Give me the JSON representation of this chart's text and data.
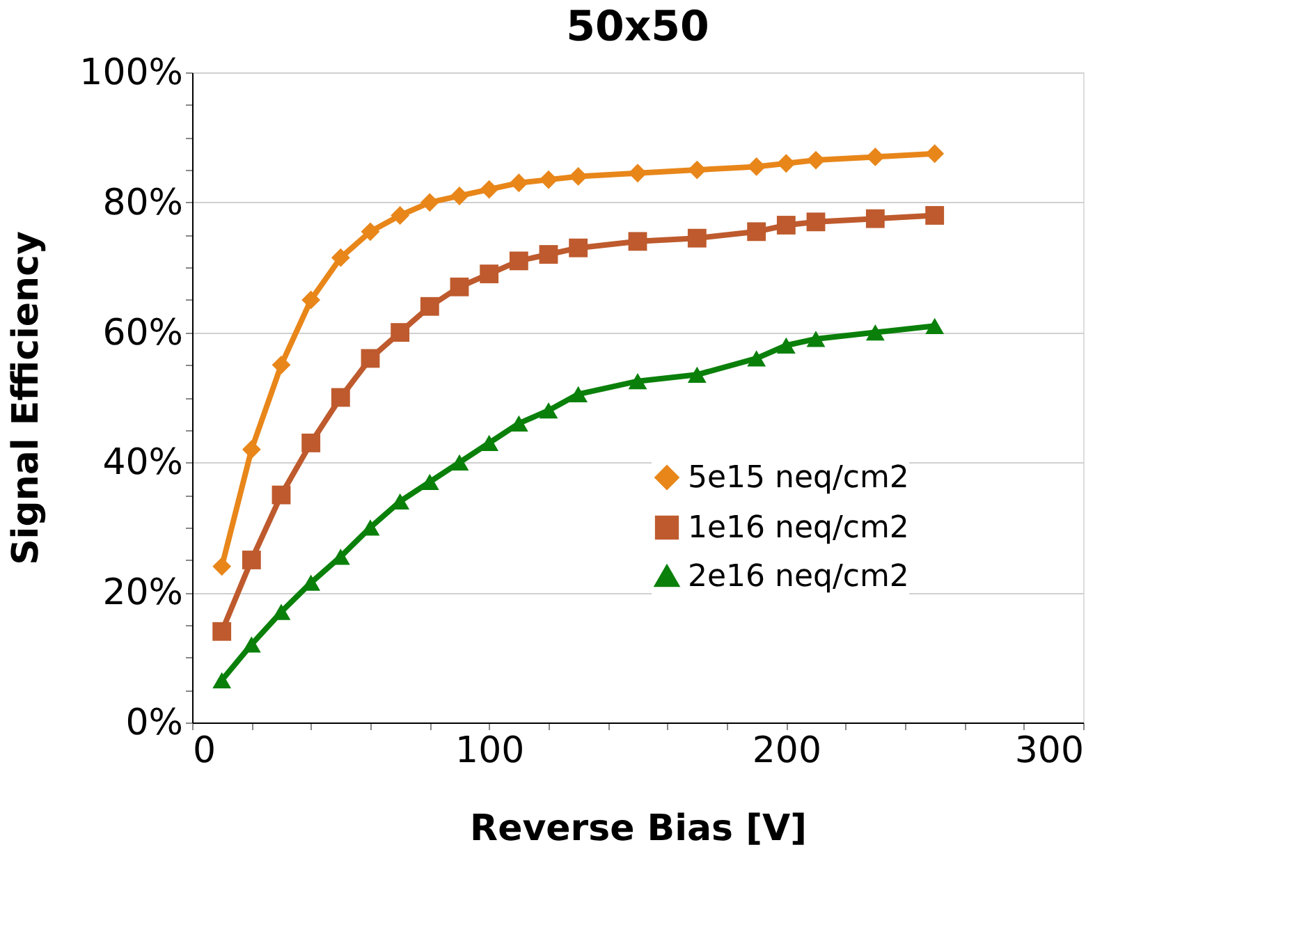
{
  "chart_data": {
    "type": "line",
    "title": "50x50",
    "xlabel": "Reverse Bias [V]",
    "ylabel": "Signal Efficiency",
    "x": [
      10,
      20,
      30,
      40,
      50,
      60,
      70,
      80,
      90,
      100,
      110,
      120,
      130,
      150,
      170,
      190,
      200,
      210,
      230,
      250
    ],
    "series": [
      {
        "name": "5e15 neq/cm2",
        "color": "#e8861a",
        "marker": "diamond",
        "values": [
          24,
          42,
          55,
          65,
          71.5,
          75.5,
          78,
          80,
          81,
          82,
          83,
          83.5,
          84,
          84.5,
          85,
          85.5,
          86,
          86.5,
          87,
          87.5
        ]
      },
      {
        "name": "1e16 neq/cm2",
        "color": "#be5a2d",
        "marker": "square",
        "values": [
          14,
          25,
          35,
          43,
          50,
          56,
          60,
          64,
          67,
          69,
          71,
          72,
          73,
          74,
          74.5,
          75.5,
          76.5,
          77,
          77.5,
          78
        ]
      },
      {
        "name": "2e16 neq/cm2",
        "color": "#0a800a",
        "marker": "triangle",
        "values": [
          6.5,
          12,
          17,
          21.5,
          25.5,
          30,
          34,
          37,
          40,
          43,
          46,
          48,
          50.5,
          52.5,
          53.5,
          56,
          58,
          59,
          60,
          61
        ]
      }
    ],
    "xlim": [
      0,
      300
    ],
    "xticks": [
      0,
      {
        "value": 20,
        "label": null
      },
      {
        "value": 40,
        "label": null
      },
      {
        "value": 60,
        "label": null
      },
      {
        "value": 80,
        "label": null
      },
      100,
      {
        "value": 120,
        "label": null
      },
      {
        "value": 140,
        "label": null
      },
      {
        "value": 160,
        "label": null
      },
      {
        "value": 180,
        "label": null
      },
      200,
      {
        "value": 220,
        "label": null
      },
      {
        "value": 240,
        "label": null
      },
      {
        "value": 260,
        "label": null
      },
      {
        "value": 280,
        "label": null
      },
      300
    ],
    "ylim": [
      0,
      100
    ],
    "yticks": [
      {
        "value": 0,
        "label": "0%"
      },
      {
        "value": 5,
        "label": null
      },
      {
        "value": 10,
        "label": null
      },
      {
        "value": 15,
        "label": null
      },
      {
        "value": 20,
        "label": "20%"
      },
      {
        "value": 25,
        "label": null
      },
      {
        "value": 30,
        "label": null
      },
      {
        "value": 35,
        "label": null
      },
      {
        "value": 40,
        "label": "40%"
      },
      {
        "value": 45,
        "label": null
      },
      {
        "value": 50,
        "label": null
      },
      {
        "value": 55,
        "label": null
      },
      {
        "value": 60,
        "label": "60%"
      },
      {
        "value": 65,
        "label": null
      },
      {
        "value": 70,
        "label": null
      },
      {
        "value": 75,
        "label": null
      },
      {
        "value": 80,
        "label": "80%"
      },
      {
        "value": 85,
        "label": null
      },
      {
        "value": 90,
        "label": null
      },
      {
        "value": 95,
        "label": null
      },
      {
        "value": 100,
        "label": "100%"
      }
    ],
    "grid": "y",
    "legend": "bottom right",
    "line_style": "solid"
  }
}
